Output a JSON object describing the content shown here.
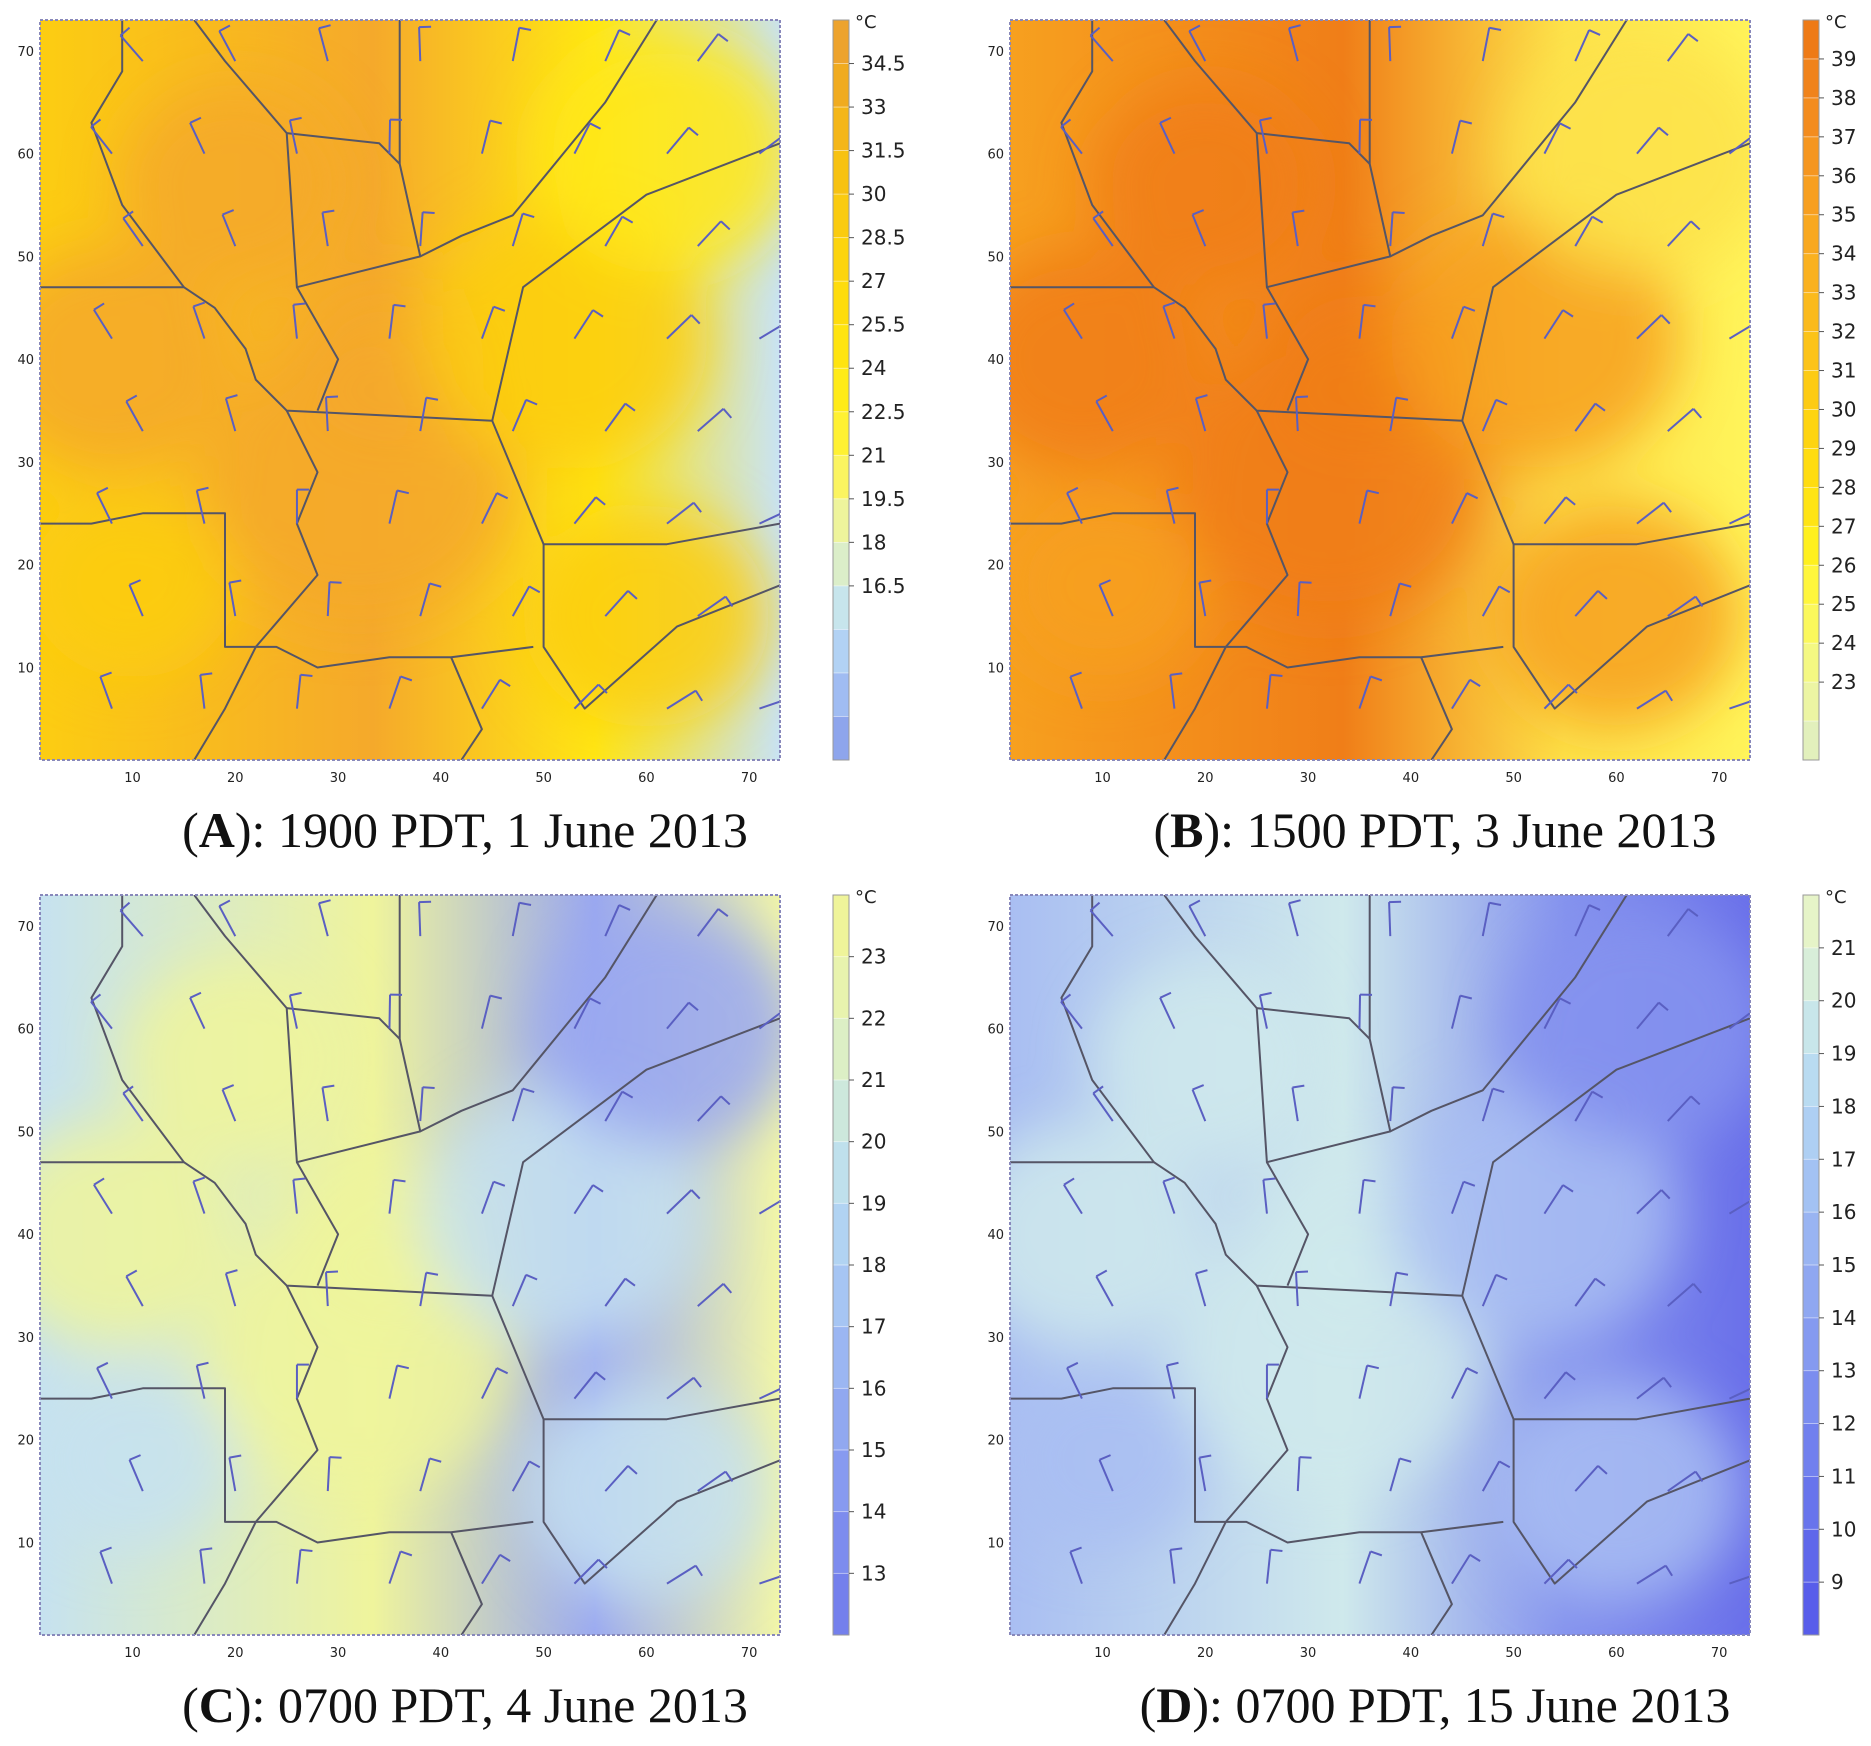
{
  "figure": {
    "panels": [
      {
        "id": "A",
        "caption": {
          "label": "A",
          "text": "): 1900 PDT, 1 June 2013"
        },
        "colorbar": {
          "unit": "°C",
          "labels": [
            "34.5",
            "33",
            "31.5",
            "30",
            "28.5",
            "27",
            "25.5",
            "24",
            "22.5",
            "21",
            "19.5",
            "18",
            "16.5"
          ],
          "colors": [
            "#eda32d",
            "#f0ab20",
            "#f4b618",
            "#f7c211",
            "#facb0f",
            "#fcd40d",
            "#fedc0c",
            "#ffe40f",
            "#ffeb17",
            "#fff132",
            "#fbf460",
            "#eef49c",
            "#dbeec9",
            "#c7e5ec",
            "#b2d2f4",
            "#a0bcf2",
            "#8ea5ec"
          ]
        },
        "field": {
          "warmColor": "#f5a92b",
          "midColor": "#fccd12",
          "coolColor": "#ffe715",
          "edgeColor": "#c9e3f3"
        }
      },
      {
        "id": "B",
        "caption": {
          "label": "B",
          "text": "): 1500 PDT, 3 June 2013"
        },
        "colorbar": {
          "unit": "°C",
          "labels": [
            "39",
            "38",
            "37",
            "36",
            "35",
            "34",
            "33",
            "32",
            "31",
            "30",
            "29",
            "28",
            "27",
            "26",
            "25",
            "24",
            "23"
          ],
          "colors": [
            "#ee7a16",
            "#f0831b",
            "#f38c1e",
            "#f59620",
            "#f79f20",
            "#f8a820",
            "#fab11f",
            "#fbba1c",
            "#fcc318",
            "#fdcb13",
            "#fed410",
            "#ffdc10",
            "#ffe414",
            "#fff01e",
            "#fff63c",
            "#fbf85c",
            "#f4f882",
            "#ecf5a3",
            "#e2f0bc"
          ]
        },
        "field": {
          "warmColor": "#f07e18",
          "midColor": "#f7a01f",
          "coolColor": "#fde24a",
          "edgeColor": "#fff45a"
        }
      },
      {
        "id": "C",
        "caption": {
          "label": "C",
          "text": "): 0700 PDT, 4 June 2013"
        },
        "colorbar": {
          "unit": "°C",
          "labels": [
            "23",
            "22",
            "21",
            "20",
            "19",
            "18",
            "17",
            "16",
            "15",
            "14",
            "13"
          ],
          "colors": [
            "#eff49a",
            "#e8f3ae",
            "#dcefc5",
            "#cde8dc",
            "#bfe0ec",
            "#b1d3f2",
            "#a6c5f3",
            "#9bb6f2",
            "#91a8f0",
            "#879af0",
            "#7d8cee",
            "#7480ec"
          ]
        },
        "field": {
          "warmColor": "#eff49c",
          "midColor": "#c6e2f0",
          "coolColor": "#9aa8f0",
          "edgeColor": "#f2f6a8"
        }
      },
      {
        "id": "D",
        "caption": {
          "label": "D",
          "text": "): 0700 PDT, 15 June 2013"
        },
        "colorbar": {
          "unit": "°C",
          "labels": [
            "21",
            "20",
            "19",
            "18",
            "17",
            "16",
            "15",
            "14",
            "13",
            "12",
            "11",
            "10",
            "9"
          ],
          "colors": [
            "#e6f4c8",
            "#d8eed9",
            "#c8e6ea",
            "#b9dbf1",
            "#aecff3",
            "#a3c2f3",
            "#99b4f2",
            "#8fa7f1",
            "#859af0",
            "#7b8def",
            "#7180ee",
            "#6874ec",
            "#5f67ea",
            "#585dea"
          ]
        },
        "field": {
          "warmColor": "#cfe9ec",
          "midColor": "#a9bef2",
          "coolColor": "#8593ee",
          "edgeColor": "#6a70ea"
        }
      }
    ],
    "axes": {
      "x_ticks": [
        "10",
        "20",
        "30",
        "40",
        "50",
        "60",
        "70"
      ],
      "y_ticks": [
        "70",
        "60",
        "50",
        "40",
        "30",
        "20",
        "10"
      ]
    }
  }
}
